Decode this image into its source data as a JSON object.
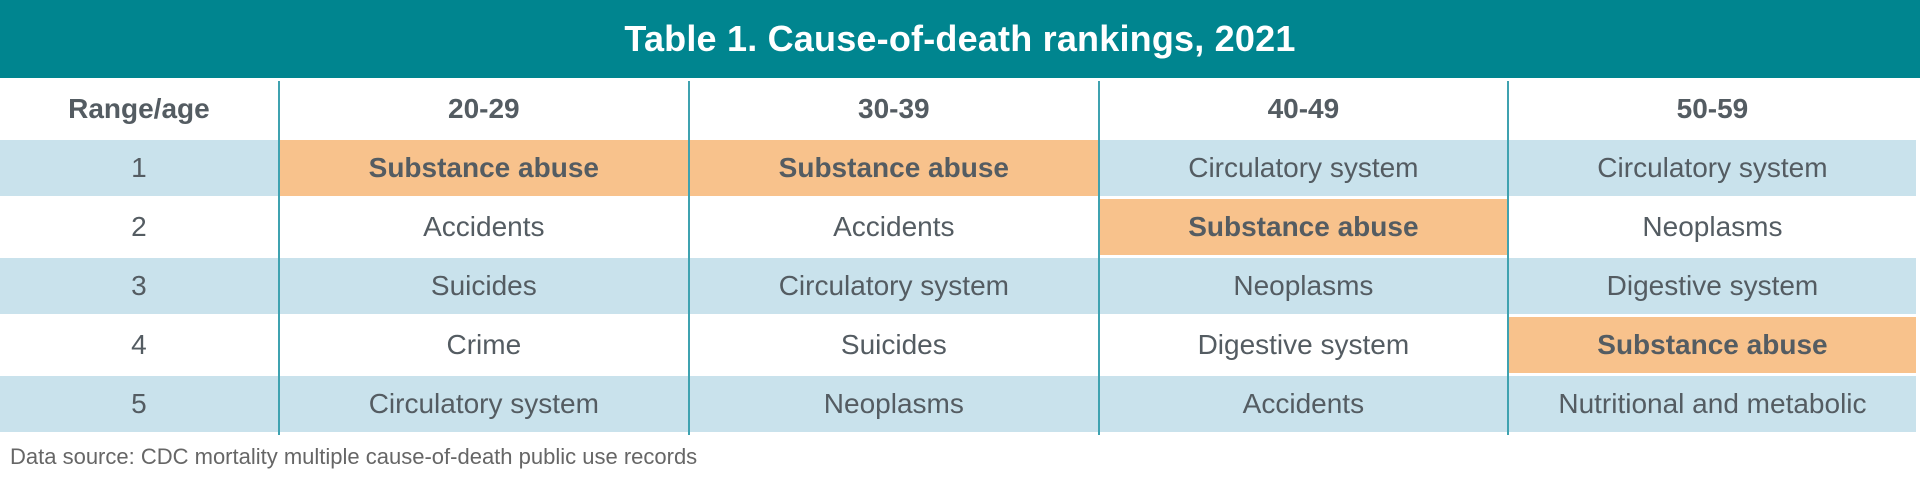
{
  "title": "Table 1. Cause-of-death rankings, 2021",
  "footer": "Data source: CDC mortality multiple cause-of-death public use records",
  "colors": {
    "header_teal": "#00858F",
    "column_divider_teal": "#3FA2B0",
    "row_stripe_blue": "#C9E2EC",
    "substance_abuse_highlight_orange": "#F8C28C",
    "cell_text_gray": "#545C62",
    "footer_text_gray": "#666666"
  },
  "chart_data": {
    "type": "table",
    "title": "Table 1. Cause-of-death rankings, 2021",
    "columns": [
      "Range/age",
      "20-29",
      "30-39",
      "40-49",
      "50-59"
    ],
    "rows": [
      {
        "rank": "1",
        "cells": [
          {
            "text": "Substance abuse",
            "highlight": true
          },
          {
            "text": "Substance abuse",
            "highlight": true
          },
          {
            "text": "Circulatory system",
            "highlight": false
          },
          {
            "text": "Circulatory system",
            "highlight": false
          }
        ]
      },
      {
        "rank": "2",
        "cells": [
          {
            "text": "Accidents",
            "highlight": false
          },
          {
            "text": "Accidents",
            "highlight": false
          },
          {
            "text": "Substance abuse",
            "highlight": true
          },
          {
            "text": "Neoplasms",
            "highlight": false
          }
        ]
      },
      {
        "rank": "3",
        "cells": [
          {
            "text": "Suicides",
            "highlight": false
          },
          {
            "text": "Circulatory system",
            "highlight": false
          },
          {
            "text": "Neoplasms",
            "highlight": false
          },
          {
            "text": "Digestive system",
            "highlight": false
          }
        ]
      },
      {
        "rank": "4",
        "cells": [
          {
            "text": "Crime",
            "highlight": false
          },
          {
            "text": "Suicides",
            "highlight": false
          },
          {
            "text": "Digestive system",
            "highlight": false
          },
          {
            "text": "Substance abuse",
            "highlight": true
          }
        ]
      },
      {
        "rank": "5",
        "cells": [
          {
            "text": "Circulatory system",
            "highlight": false
          },
          {
            "text": "Neoplasms",
            "highlight": false
          },
          {
            "text": "Accidents",
            "highlight": false
          },
          {
            "text": "Nutritional and metabolic",
            "highlight": false
          }
        ]
      }
    ],
    "layout_hints": {
      "row_striping": "rows 1,3,5 light blue; rows 2,4 white",
      "highlight_meaning": "orange bold cells mark Substance abuse ranking",
      "legend": "none",
      "grid": "teal vertical dividers between columns only"
    }
  }
}
